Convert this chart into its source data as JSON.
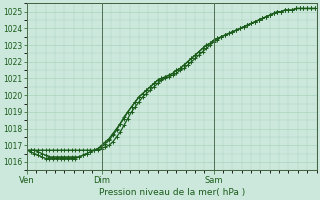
{
  "title": "Pression niveau de la mer( hPa )",
  "bg_color": "#cce8dc",
  "grid_color": "#a8d4bc",
  "line_color": "#1a5c1a",
  "text_color": "#1a5c1a",
  "spine_color": "#406040",
  "ylim": [
    1015.5,
    1025.5
  ],
  "yticks": [
    1016,
    1017,
    1018,
    1019,
    1020,
    1021,
    1022,
    1023,
    1024,
    1025
  ],
  "xtick_labels": [
    "Ven",
    "Dim",
    "Sam"
  ],
  "xtick_positions": [
    0,
    40,
    100
  ],
  "xlim": [
    0,
    155
  ],
  "series1_x": [
    0,
    2,
    4,
    6,
    8,
    10,
    12,
    14,
    16,
    18,
    20,
    22,
    24,
    26,
    28,
    30,
    32,
    34,
    36,
    38,
    40,
    42,
    44,
    46,
    48,
    50,
    52,
    54,
    56,
    58,
    60,
    62,
    64,
    66,
    68,
    70,
    72,
    74,
    76,
    78,
    80,
    82,
    84,
    86,
    88,
    90,
    92,
    94,
    96,
    98,
    100,
    102,
    104,
    106,
    108,
    110,
    112,
    114,
    116,
    118,
    120,
    122,
    124,
    126,
    128,
    130,
    132,
    134,
    136,
    138,
    140,
    142,
    144,
    146,
    148,
    150,
    152,
    154
  ],
  "series1_y": [
    1016.7,
    1016.7,
    1016.7,
    1016.7,
    1016.7,
    1016.7,
    1016.7,
    1016.7,
    1016.7,
    1016.7,
    1016.7,
    1016.7,
    1016.7,
    1016.7,
    1016.7,
    1016.7,
    1016.7,
    1016.7,
    1016.7,
    1016.7,
    1016.8,
    1016.9,
    1017.0,
    1017.2,
    1017.5,
    1017.8,
    1018.2,
    1018.6,
    1019.0,
    1019.3,
    1019.6,
    1019.9,
    1020.1,
    1020.3,
    1020.5,
    1020.7,
    1020.9,
    1021.0,
    1021.1,
    1021.2,
    1021.3,
    1021.5,
    1021.6,
    1021.8,
    1022.0,
    1022.2,
    1022.4,
    1022.6,
    1022.8,
    1023.0,
    1023.2,
    1023.3,
    1023.5,
    1023.6,
    1023.7,
    1023.8,
    1023.9,
    1024.0,
    1024.1,
    1024.2,
    1024.3,
    1024.4,
    1024.5,
    1024.6,
    1024.7,
    1024.8,
    1024.9,
    1025.0,
    1025.0,
    1025.1,
    1025.1,
    1025.1,
    1025.2,
    1025.2,
    1025.2,
    1025.2,
    1025.2,
    1025.2
  ],
  "series2_x": [
    0,
    2,
    4,
    6,
    8,
    10,
    12,
    14,
    16,
    18,
    20,
    22,
    24,
    26,
    28,
    30,
    32,
    34,
    36,
    38,
    40,
    42,
    44,
    46,
    48,
    50,
    52,
    54,
    56,
    58,
    60,
    62,
    64,
    66,
    68,
    70,
    72,
    74,
    76,
    78,
    80,
    82,
    84,
    86,
    88,
    90,
    92,
    94,
    96,
    98,
    100,
    102,
    104,
    106,
    108,
    110,
    112,
    114,
    116,
    118,
    120,
    122,
    124,
    126,
    128,
    130,
    132,
    134,
    136,
    138,
    140,
    142,
    144,
    146,
    148,
    150,
    152,
    154
  ],
  "series2_y": [
    1016.7,
    1016.6,
    1016.5,
    1016.4,
    1016.3,
    1016.2,
    1016.2,
    1016.2,
    1016.2,
    1016.2,
    1016.2,
    1016.2,
    1016.2,
    1016.2,
    1016.3,
    1016.4,
    1016.5,
    1016.6,
    1016.7,
    1016.8,
    1016.9,
    1017.1,
    1017.3,
    1017.6,
    1017.9,
    1018.3,
    1018.6,
    1019.0,
    1019.3,
    1019.6,
    1019.9,
    1020.1,
    1020.3,
    1020.5,
    1020.7,
    1020.9,
    1021.0,
    1021.1,
    1021.2,
    1021.3,
    1021.5,
    1021.6,
    1021.8,
    1022.0,
    1022.2,
    1022.4,
    1022.6,
    1022.8,
    1023.0,
    1023.1,
    1023.3,
    1023.4,
    1023.5,
    1023.6,
    1023.7,
    1023.8,
    1023.9,
    1024.0,
    1024.1,
    1024.2,
    1024.3,
    1024.4,
    1024.5,
    1024.6,
    1024.7,
    1024.8,
    1024.9,
    1025.0,
    1025.0,
    1025.1,
    1025.1,
    1025.1,
    1025.2,
    1025.2,
    1025.2,
    1025.2,
    1025.2,
    1025.2
  ],
  "series3_x": [
    0,
    2,
    4,
    6,
    8,
    10,
    12,
    14,
    16,
    18,
    20,
    22,
    24,
    26,
    28,
    30,
    32,
    34,
    36,
    38,
    40,
    42,
    44,
    46,
    48,
    50,
    52,
    54,
    56,
    58,
    60,
    62,
    64,
    66,
    68,
    70,
    72,
    74,
    76,
    78,
    80,
    82,
    84,
    86,
    88,
    90,
    92,
    94,
    96,
    98,
    100,
    102,
    104,
    106,
    108,
    110,
    112,
    114,
    116,
    118,
    120,
    122,
    124,
    126,
    128,
    130,
    132,
    134,
    136,
    138,
    140,
    142,
    144,
    146,
    148,
    150,
    152,
    154
  ],
  "series3_y": [
    1016.7,
    1016.7,
    1016.7,
    1016.6,
    1016.5,
    1016.4,
    1016.3,
    1016.3,
    1016.3,
    1016.3,
    1016.3,
    1016.3,
    1016.3,
    1016.3,
    1016.3,
    1016.4,
    1016.5,
    1016.6,
    1016.7,
    1016.8,
    1017.0,
    1017.2,
    1017.4,
    1017.7,
    1018.0,
    1018.3,
    1018.7,
    1019.0,
    1019.3,
    1019.6,
    1019.9,
    1020.1,
    1020.3,
    1020.5,
    1020.7,
    1020.9,
    1021.0,
    1021.1,
    1021.2,
    1021.3,
    1021.5,
    1021.6,
    1021.8,
    1022.0,
    1022.2,
    1022.4,
    1022.6,
    1022.8,
    1023.0,
    1023.1,
    1023.3,
    1023.4,
    1023.5,
    1023.6,
    1023.7,
    1023.8,
    1023.9,
    1024.0,
    1024.1,
    1024.2,
    1024.3,
    1024.4,
    1024.5,
    1024.6,
    1024.7,
    1024.8,
    1024.9,
    1025.0,
    1025.0,
    1025.1,
    1025.1,
    1025.1,
    1025.2,
    1025.2,
    1025.2,
    1025.2,
    1025.2,
    1025.2
  ]
}
